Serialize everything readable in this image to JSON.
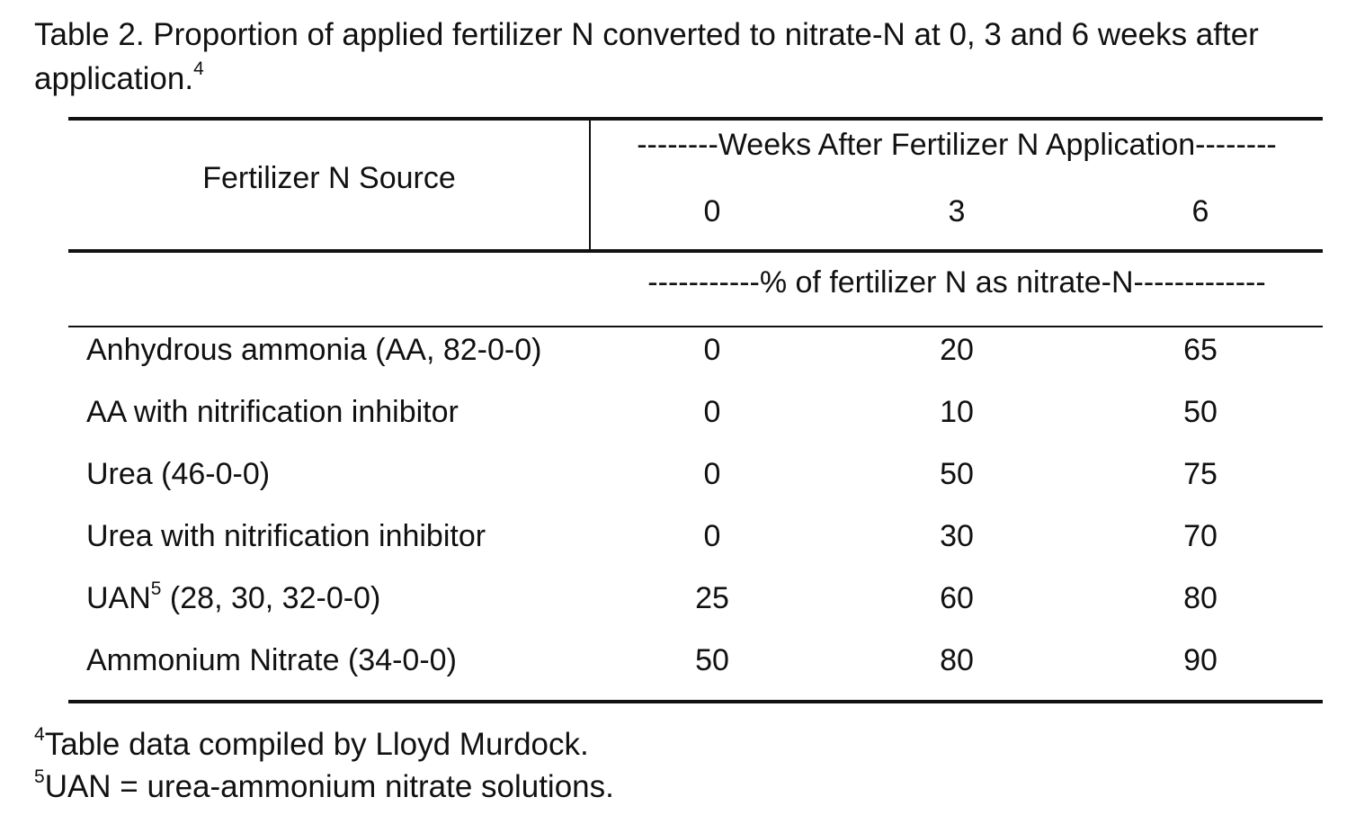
{
  "caption": {
    "text": "Table 2. Proportion of applied fertilizer N converted to nitrate-N at 0, 3 and 6 weeks after application.",
    "note_mark": "4"
  },
  "table": {
    "source_header": "Fertilizer N Source",
    "group_header": "--------Weeks After Fertilizer N Application--------",
    "weeks": [
      "0",
      "3",
      "6"
    ],
    "unit_header": "-----------% of fertilizer N as nitrate-N-------------",
    "rows": [
      {
        "source": "Anhydrous ammonia (AA, 82-0-0)",
        "note_mark": "",
        "source_tail": "",
        "values": [
          "0",
          "20",
          "65"
        ]
      },
      {
        "source": "AA with nitrification inhibitor",
        "note_mark": "",
        "source_tail": "",
        "values": [
          "0",
          "10",
          "50"
        ]
      },
      {
        "source": "Urea (46-0-0)",
        "note_mark": "",
        "source_tail": "",
        "values": [
          "0",
          "50",
          "75"
        ]
      },
      {
        "source": "Urea with nitrification inhibitor",
        "note_mark": "",
        "source_tail": "",
        "values": [
          "0",
          "30",
          "70"
        ]
      },
      {
        "source": "UAN",
        "note_mark": "5",
        "source_tail": " (28, 30, 32-0-0)",
        "values": [
          "25",
          "60",
          "80"
        ]
      },
      {
        "source": "Ammonium Nitrate (34-0-0)",
        "note_mark": "",
        "source_tail": "",
        "values": [
          "50",
          "80",
          "90"
        ]
      }
    ]
  },
  "footnotes": [
    {
      "mark": "4",
      "text": "Table data compiled by Lloyd Murdock."
    },
    {
      "mark": "5",
      "text": "UAN = urea-ammonium nitrate solutions."
    }
  ]
}
